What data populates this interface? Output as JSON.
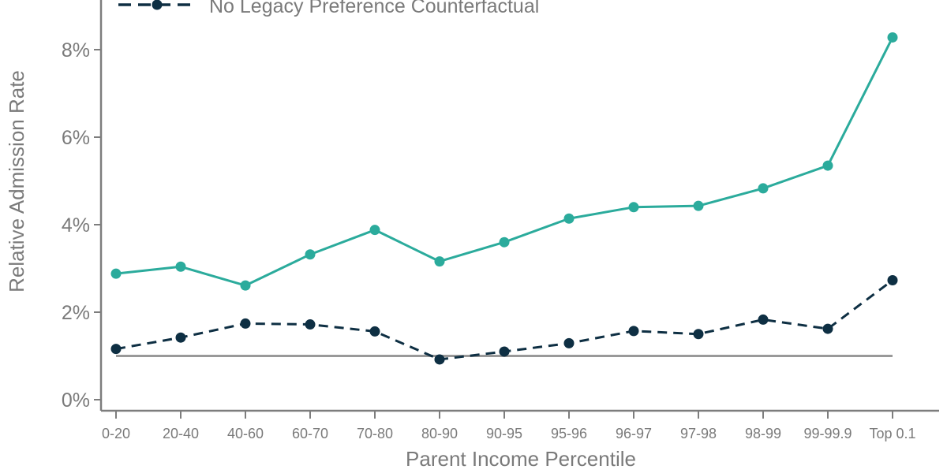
{
  "chart_data": {
    "type": "line",
    "xlabel": "Parent Income Percentile",
    "ylabel": "Relative Admission Rate",
    "categories": [
      "0-20",
      "20-40",
      "40-60",
      "60-70",
      "70-80",
      "80-90",
      "90-95",
      "95-96",
      "96-97",
      "97-98",
      "98-99",
      "99-99.9",
      "Top 0.1"
    ],
    "ylim": [
      0,
      9
    ],
    "yticks": [
      0,
      2,
      4,
      6,
      8
    ],
    "ytick_labels": [
      "0%",
      "2%",
      "4%",
      "6%",
      "8%"
    ],
    "grid": false,
    "legend_position": "top-left",
    "reference_line": {
      "value": 1.0,
      "color": "#999999"
    },
    "series": [
      {
        "values": [
          2.88,
          3.04,
          2.61,
          3.32,
          3.88,
          3.16,
          3.6,
          4.14,
          4.4,
          4.43,
          4.83,
          5.35,
          8.28
        ],
        "color": "#2bab9c",
        "style": "solid"
      },
      {
        "name": "No Legacy Preference Counterfactual",
        "values": [
          1.16,
          1.42,
          1.74,
          1.72,
          1.56,
          0.92,
          1.1,
          1.29,
          1.57,
          1.5,
          1.83,
          1.62,
          2.73
        ],
        "color": "#0e2f43",
        "style": "dashed"
      }
    ]
  }
}
